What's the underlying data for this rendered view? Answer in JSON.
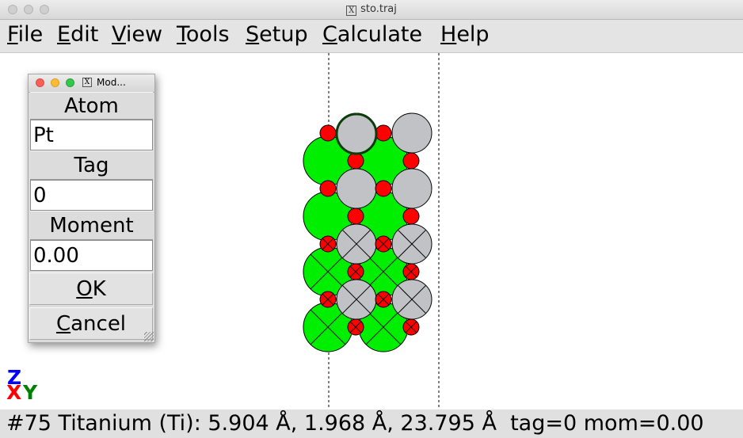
{
  "window": {
    "title": "sto.traj"
  },
  "menu": [
    {
      "pre": "",
      "u": "F",
      "post": "ile"
    },
    {
      "pre": "",
      "u": "E",
      "post": "dit"
    },
    {
      "pre": "",
      "u": "V",
      "post": "iew"
    },
    {
      "pre": "",
      "u": "T",
      "post": "ools"
    },
    {
      "pre": "",
      "u": "S",
      "post": "etup"
    },
    {
      "pre": "",
      "u": "C",
      "post": "alculate"
    },
    {
      "pre": "",
      "u": "H",
      "post": "elp"
    }
  ],
  "dialog": {
    "title": "Mod...",
    "atom_label": "Atom",
    "atom_value": "Pt",
    "tag_label": "Tag",
    "tag_value": "0",
    "moment_label": "Moment",
    "moment_value": "0.00",
    "ok": {
      "u": "O",
      "post": "K"
    },
    "cancel": {
      "u": "C",
      "post": "ancel"
    }
  },
  "axes": {
    "z": "Z",
    "x": "X",
    "y": "Y"
  },
  "status": "#75 Titanium (Ti): 5.904 Å, 1.968 Å, 23.795 Å  tag=0 mom=0.00",
  "colors": {
    "titanium": "#00ee00",
    "oxygen": "#ff0000",
    "platinum": "#c0c2c6",
    "axis_z": "#0000ff",
    "axis_x": "#ff0000",
    "axis_y": "#008000"
  }
}
